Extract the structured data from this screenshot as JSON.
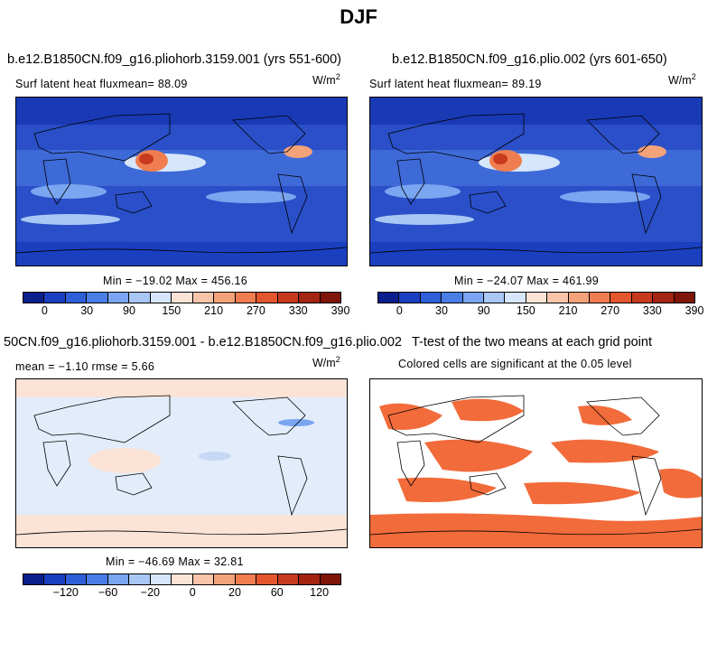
{
  "title": "DJF",
  "panels": {
    "p1": {
      "title": "b.e12.B1850CN.f09_g16.pliohorb.3159.001 (yrs 551-600)",
      "subtitle": "Surf latent heat fluxmean=  88.09",
      "units": "W/m",
      "units_sup": "2",
      "minmax": "Min = −19.02 Max = 456.16"
    },
    "p2": {
      "title": "b.e12.B1850CN.f09_g16.plio.002 (yrs 601-650)",
      "subtitle": "Surf latent heat fluxmean=  89.19",
      "units": "W/m",
      "units_sup": "2",
      "minmax": "Min = −24.07 Max = 461.99"
    },
    "p3": {
      "title": "50CN.f09_g16.pliohorb.3159.001 - b.e12.B1850CN.f09_g16.plio.002",
      "subtitle": "mean =  −1.10     rmse =    5.66",
      "units": "W/m",
      "units_sup": "2",
      "minmax": "Min = −46.69 Max =  32.81"
    },
    "p4": {
      "title": "T-test of the two means at each grid point",
      "subtitle": "Colored cells are significant at the 0.05 level"
    }
  },
  "chart_data": [
    {
      "type": "heatmap",
      "title": "b.e12.B1850CN.f09_g16.pliohorb.3159.001 (yrs 551-600)",
      "variable": "Surf latent heat flux",
      "mean": 88.09,
      "min": -19.02,
      "max": 456.16,
      "units": "W/m2",
      "colorbar_ticks": [
        "0",
        "30",
        "90",
        "150",
        "210",
        "270",
        "330",
        "390"
      ],
      "colorbar_colors": [
        "#0a1f8c",
        "#1a3fbf",
        "#2e5fd8",
        "#4a7ee6",
        "#7aa5f0",
        "#a9c7f5",
        "#d6e6fb",
        "#fbe3d6",
        "#f8c5aa",
        "#f4a27a",
        "#ef7d4f",
        "#e4562d",
        "#c83a1d",
        "#a32511",
        "#7f1409"
      ]
    },
    {
      "type": "heatmap",
      "title": "b.e12.B1850CN.f09_g16.plio.002 (yrs 601-650)",
      "variable": "Surf latent heat flux",
      "mean": 89.19,
      "min": -24.07,
      "max": 461.99,
      "units": "W/m2",
      "colorbar_ticks": [
        "0",
        "30",
        "90",
        "150",
        "210",
        "270",
        "330",
        "390"
      ],
      "colorbar_colors": [
        "#0a1f8c",
        "#1a3fbf",
        "#2e5fd8",
        "#4a7ee6",
        "#7aa5f0",
        "#a9c7f5",
        "#d6e6fb",
        "#fbe3d6",
        "#f8c5aa",
        "#f4a27a",
        "#ef7d4f",
        "#e4562d",
        "#c83a1d",
        "#a32511",
        "#7f1409"
      ]
    },
    {
      "type": "heatmap",
      "title": "50CN.f09_g16.pliohorb.3159.001 - b.e12.B1850CN.f09_g16.plio.002",
      "mean": -1.1,
      "rmse": 5.66,
      "min": -46.69,
      "max": 32.81,
      "units": "W/m2",
      "colorbar_ticks": [
        "−120",
        "−60",
        "−20",
        "0",
        "20",
        "60",
        "120"
      ],
      "colorbar_colors": [
        "#0a1f8c",
        "#1a3fbf",
        "#2e5fd8",
        "#4a7ee6",
        "#7aa5f0",
        "#a9c7f5",
        "#d6e6fb",
        "#fbe3d6",
        "#f8c5aa",
        "#f4a27a",
        "#ef7d4f",
        "#e4562d",
        "#c83a1d",
        "#a32511",
        "#7f1409"
      ]
    },
    {
      "type": "heatmap",
      "title": "T-test of the two means at each grid point",
      "note": "Colored cells are significant at the 0.05 level",
      "significant_color": "#f26b3a"
    }
  ]
}
